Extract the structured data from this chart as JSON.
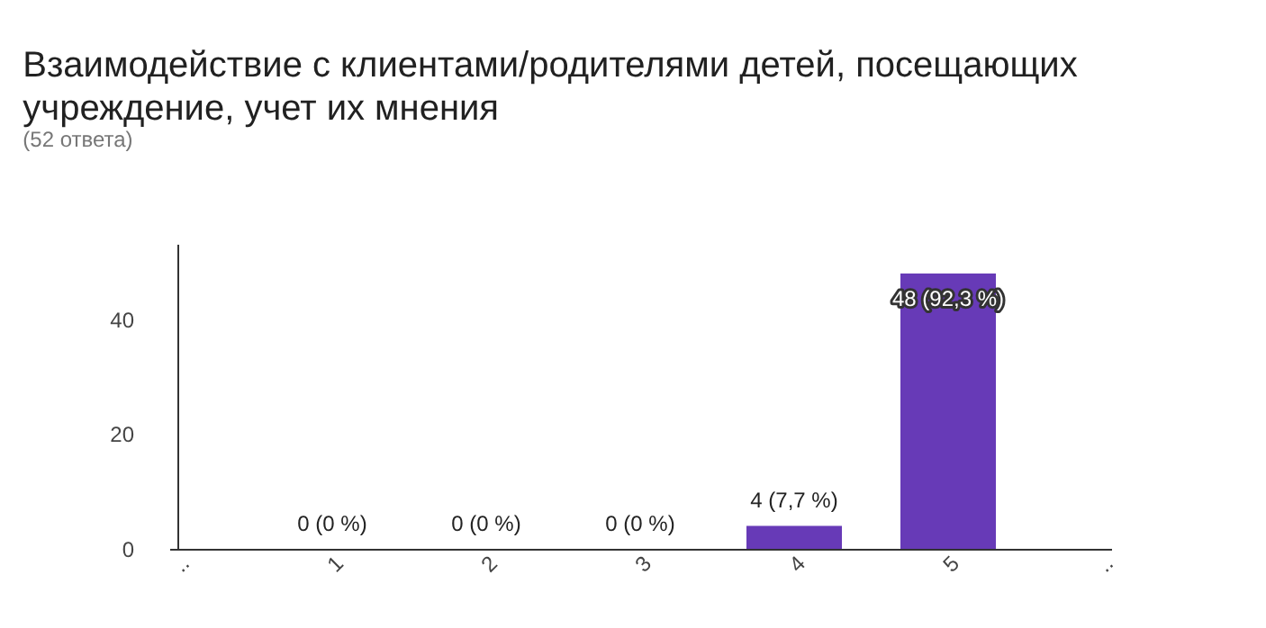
{
  "chart_data": {
    "type": "bar",
    "title": "Взаимодействие с клиентами/родителями детей, посещающих учреждение, учет их мнения",
    "subtitle": "(52 ответа)",
    "x": [
      1,
      2,
      3,
      4,
      5
    ],
    "series": [
      {
        "color": "#673ab7",
        "values": [
          0,
          0,
          0,
          4,
          48
        ]
      }
    ],
    "value_labels": [
      "0 (0 %)",
      "0 (0 %)",
      "0 (0 %)",
      "4 (7,7 %)",
      "48 (92,3 %)"
    ],
    "xlim": [
      0,
      6
    ],
    "xticks": [
      {
        "value": 0,
        "label": ".."
      },
      1,
      2,
      3,
      4,
      5,
      {
        "value": 6,
        "label": ".."
      }
    ],
    "ylim": [
      0,
      53
    ],
    "yticks": [
      0,
      20,
      40
    ],
    "grid": false
  }
}
